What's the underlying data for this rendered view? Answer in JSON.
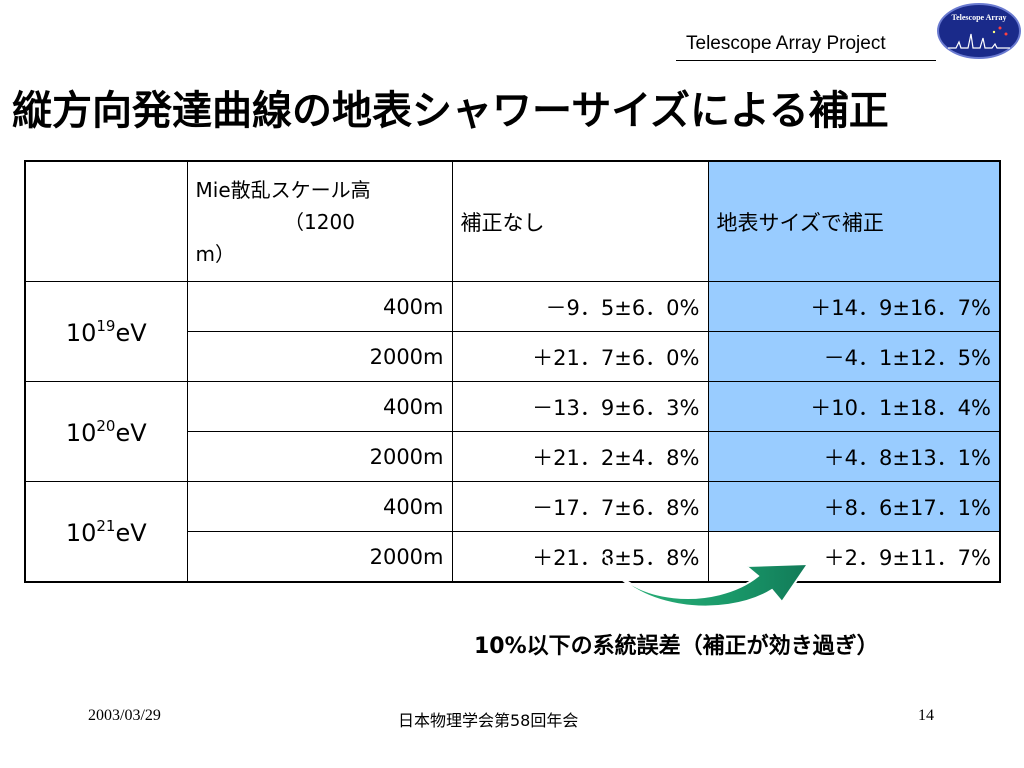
{
  "header": {
    "project": "Telescope Array Project",
    "logo_text": "Telescope Array"
  },
  "title": "縦方向発達曲線の地表シャワーサイズによる補正",
  "table": {
    "columns": {
      "empty": "",
      "mie_line1": "Mie散乱スケール高",
      "mie_line2": "（1200",
      "mie_line3": "m）",
      "uncorrected": "補正なし",
      "corrected": "地表サイズで補正"
    },
    "groups": [
      {
        "energy_base": "10",
        "energy_exp": "19",
        "energy_unit": "eV",
        "rows": [
          {
            "scale": "400m",
            "uncorrected": "－9．5±6．0%",
            "corrected": "＋14．9±16．7%"
          },
          {
            "scale": "2000m",
            "uncorrected": "＋21．7±6．0%",
            "corrected": "－4．1±12．5%"
          }
        ]
      },
      {
        "energy_base": "10",
        "energy_exp": "20",
        "energy_unit": "eV",
        "rows": [
          {
            "scale": "400m",
            "uncorrected": "－13．9±6．3%",
            "corrected": "＋10．1±18．4%"
          },
          {
            "scale": "2000m",
            "uncorrected": "＋21．2±4．8%",
            "corrected": "＋4．8±13．1%"
          }
        ]
      },
      {
        "energy_base": "10",
        "energy_exp": "21",
        "energy_unit": "eV",
        "rows": [
          {
            "scale": "400m",
            "uncorrected": "－17．7±6．8%",
            "corrected": "＋8．6±17．1%"
          },
          {
            "scale": "2000m",
            "uncorrected": "＋21．8±5．8%",
            "corrected": "＋2．9±11．7%"
          }
        ]
      }
    ]
  },
  "note": "10%以下の系統誤差（補正が効き過ぎ）",
  "footer": {
    "date": "2003/03/29",
    "event": "日本物理学会第58回年会",
    "page": "14"
  },
  "colors": {
    "highlight_column": "#99ccff",
    "arrow": "#1aa86e",
    "logo_bg": "#1a2a8a"
  }
}
